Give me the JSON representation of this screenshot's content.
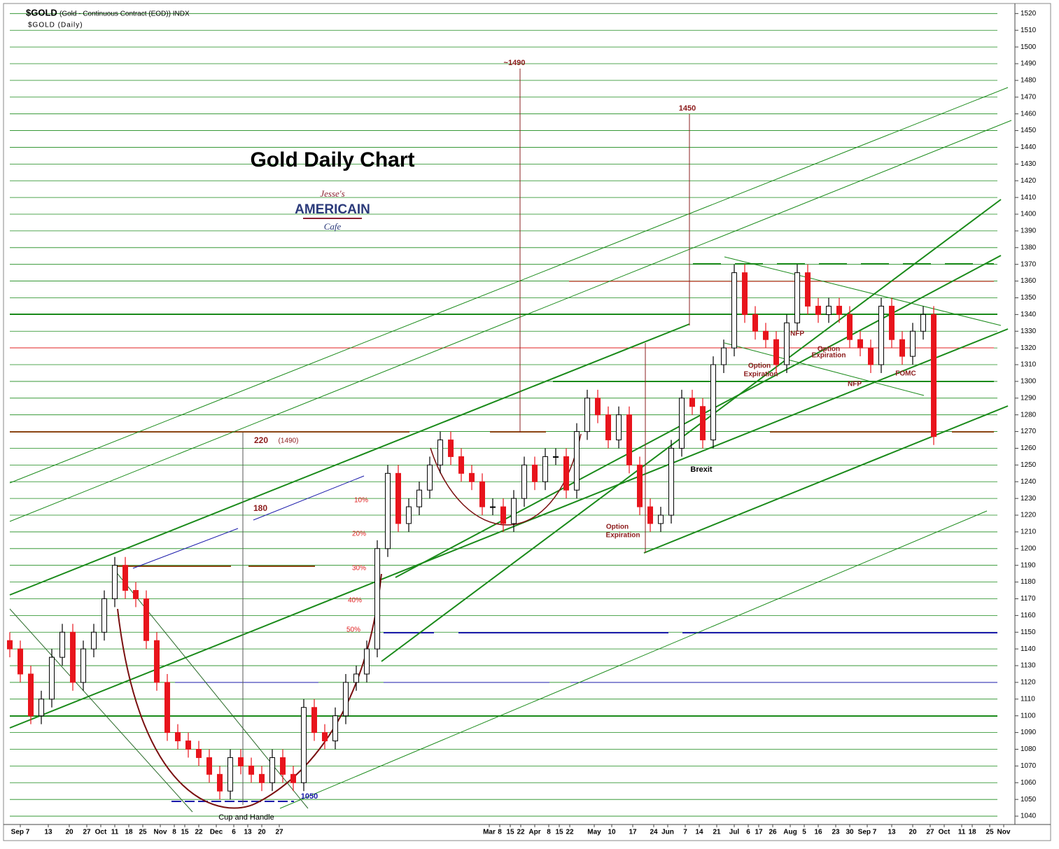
{
  "header": {
    "symbol": "$GOLD",
    "description": "(Gold - Continuous Contract (EOD)) INDX",
    "subtitle": "$GOLD (Daily)"
  },
  "logo": {
    "line1": "Jesse's",
    "line2": "AMERICAIN",
    "line3": "Cafe"
  },
  "chart_data": {
    "type": "candlestick",
    "title": "Gold Daily Chart",
    "up_color": "#000000",
    "down_color": "#e8141c",
    "grid_color": "#1a8a1a",
    "grid": true,
    "xlim": [
      0,
      287
    ],
    "ylim": [
      1035,
      1526
    ],
    "yticks": [
      1040,
      1050,
      1060,
      1070,
      1080,
      1090,
      1100,
      1110,
      1120,
      1130,
      1140,
      1150,
      1160,
      1170,
      1180,
      1190,
      1200,
      1210,
      1220,
      1230,
      1240,
      1250,
      1260,
      1270,
      1280,
      1290,
      1300,
      1310,
      1320,
      1330,
      1340,
      1350,
      1360,
      1370,
      1380,
      1390,
      1400,
      1410,
      1420,
      1430,
      1440,
      1450,
      1460,
      1470,
      1480,
      1490,
      1500,
      1510,
      1520
    ],
    "xticks": [
      {
        "value": 3,
        "label": "Sep 7"
      },
      {
        "value": 11,
        "label": "13"
      },
      {
        "value": 17,
        "label": "20"
      },
      {
        "value": 22,
        "label": "27"
      },
      {
        "value": 26,
        "label": "Oct"
      },
      {
        "value": 30,
        "label": "11"
      },
      {
        "value": 34,
        "label": "18"
      },
      {
        "value": 38,
        "label": "25"
      },
      {
        "value": 43,
        "label": "Nov"
      },
      {
        "value": 47,
        "label": "8"
      },
      {
        "value": 50,
        "label": "15"
      },
      {
        "value": 54,
        "label": "22"
      },
      {
        "value": 59,
        "label": "Dec"
      },
      {
        "value": 64,
        "label": "6"
      },
      {
        "value": 68,
        "label": "13"
      },
      {
        "value": 72,
        "label": "20"
      },
      {
        "value": 77,
        "label": "27"
      },
      {
        "value": 137,
        "label": "Mar"
      },
      {
        "value": 140,
        "label": "8"
      },
      {
        "value": 143,
        "label": "15"
      },
      {
        "value": 146,
        "label": "22"
      },
      {
        "value": 150,
        "label": "Apr"
      },
      {
        "value": 154,
        "label": "8"
      },
      {
        "value": 157,
        "label": "15"
      },
      {
        "value": 160,
        "label": "22"
      },
      {
        "value": 167,
        "label": "May"
      },
      {
        "value": 172,
        "label": "10"
      },
      {
        "value": 178,
        "label": "17"
      },
      {
        "value": 184,
        "label": "24"
      },
      {
        "value": 188,
        "label": "Jun"
      },
      {
        "value": 193,
        "label": "7"
      },
      {
        "value": 197,
        "label": "14"
      },
      {
        "value": 202,
        "label": "21"
      },
      {
        "value": 207,
        "label": "Jul"
      },
      {
        "value": 211,
        "label": "6"
      },
      {
        "value": 214,
        "label": "17"
      },
      {
        "value": 218,
        "label": "26"
      },
      {
        "value": 223,
        "label": "Aug"
      },
      {
        "value": 227,
        "label": "5"
      },
      {
        "value": 231,
        "label": "16"
      },
      {
        "value": 236,
        "label": "23"
      },
      {
        "value": 240,
        "label": "30"
      },
      {
        "value": 245,
        "label": "Sep 7"
      },
      {
        "value": 252,
        "label": "13"
      },
      {
        "value": 258,
        "label": "20"
      },
      {
        "value": 263,
        "label": "27"
      },
      {
        "value": 267,
        "label": "Oct"
      },
      {
        "value": 272,
        "label": "11"
      },
      {
        "value": 275,
        "label": "18"
      },
      {
        "value": 280,
        "label": "25"
      },
      {
        "value": 284,
        "label": "Nov"
      }
    ],
    "x": [
      0,
      3,
      6,
      9,
      12,
      15,
      18,
      21,
      24,
      27,
      30,
      33,
      36,
      39,
      42,
      45,
      48,
      51,
      54,
      57,
      60,
      63,
      66,
      69,
      72,
      75,
      78,
      81,
      84,
      87,
      90,
      93,
      96,
      99,
      102,
      105,
      108,
      111,
      114,
      117,
      120,
      123,
      126,
      129,
      132,
      135,
      138,
      141,
      144,
      147,
      150,
      153,
      156,
      159,
      162,
      165,
      168,
      171,
      174,
      177,
      180,
      183,
      186,
      189,
      192,
      195,
      198,
      201,
      204,
      207,
      210,
      213,
      216,
      219,
      222,
      225,
      228,
      231,
      234,
      237,
      240,
      243,
      246,
      249,
      252,
      255,
      258,
      261,
      264
    ],
    "open": [
      1145,
      1140,
      1125,
      1100,
      1110,
      1135,
      1150,
      1120,
      1140,
      1150,
      1170,
      1190,
      1175,
      1170,
      1145,
      1120,
      1090,
      1085,
      1080,
      1075,
      1065,
      1055,
      1075,
      1070,
      1065,
      1060,
      1075,
      1065,
      1060,
      1105,
      1090,
      1085,
      1100,
      1120,
      1125,
      1140,
      1200,
      1245,
      1215,
      1225,
      1235,
      1250,
      1265,
      1255,
      1245,
      1240,
      1225,
      1225,
      1215,
      1230,
      1250,
      1240,
      1255,
      1255,
      1235,
      1270,
      1290,
      1280,
      1265,
      1280,
      1250,
      1225,
      1215,
      1220,
      1260,
      1290,
      1285,
      1265,
      1310,
      1320,
      1365,
      1340,
      1330,
      1325,
      1310,
      1335,
      1365,
      1345,
      1340,
      1345,
      1340,
      1325,
      1320,
      1310,
      1345,
      1325,
      1315,
      1330,
      1340
    ],
    "high": [
      1150,
      1145,
      1130,
      1115,
      1140,
      1155,
      1155,
      1145,
      1155,
      1175,
      1195,
      1195,
      1180,
      1175,
      1150,
      1125,
      1095,
      1090,
      1085,
      1080,
      1070,
      1080,
      1080,
      1075,
      1070,
      1080,
      1080,
      1070,
      1110,
      1110,
      1095,
      1105,
      1125,
      1130,
      1145,
      1205,
      1250,
      1250,
      1230,
      1240,
      1255,
      1270,
      1270,
      1260,
      1250,
      1245,
      1230,
      1230,
      1235,
      1255,
      1255,
      1260,
      1260,
      1260,
      1275,
      1295,
      1295,
      1285,
      1285,
      1285,
      1255,
      1230,
      1225,
      1265,
      1295,
      1295,
      1290,
      1315,
      1325,
      1370,
      1370,
      1345,
      1335,
      1330,
      1340,
      1370,
      1370,
      1350,
      1350,
      1350,
      1345,
      1330,
      1325,
      1350,
      1350,
      1330,
      1335,
      1345,
      1345
    ],
    "low": [
      1135,
      1120,
      1095,
      1095,
      1105,
      1130,
      1115,
      1115,
      1135,
      1145,
      1165,
      1170,
      1165,
      1140,
      1115,
      1085,
      1080,
      1075,
      1070,
      1060,
      1050,
      1050,
      1065,
      1060,
      1055,
      1055,
      1060,
      1055,
      1055,
      1085,
      1080,
      1080,
      1095,
      1115,
      1120,
      1135,
      1195,
      1210,
      1210,
      1220,
      1230,
      1245,
      1250,
      1240,
      1235,
      1220,
      1220,
      1210,
      1210,
      1225,
      1235,
      1235,
      1250,
      1230,
      1230,
      1265,
      1275,
      1260,
      1260,
      1245,
      1220,
      1210,
      1210,
      1215,
      1255,
      1280,
      1260,
      1260,
      1305,
      1315,
      1335,
      1325,
      1320,
      1305,
      1305,
      1330,
      1340,
      1335,
      1335,
      1335,
      1320,
      1315,
      1305,
      1305,
      1320,
      1310,
      1310,
      1325,
      1262
    ],
    "close": [
      1140,
      1125,
      1100,
      1110,
      1135,
      1150,
      1120,
      1140,
      1150,
      1170,
      1190,
      1175,
      1170,
      1145,
      1120,
      1090,
      1085,
      1080,
      1075,
      1065,
      1055,
      1075,
      1070,
      1065,
      1060,
      1075,
      1065,
      1060,
      1105,
      1090,
      1085,
      1100,
      1120,
      1125,
      1140,
      1200,
      1245,
      1215,
      1225,
      1235,
      1250,
      1265,
      1255,
      1245,
      1240,
      1225,
      1225,
      1215,
      1230,
      1250,
      1240,
      1255,
      1255,
      1235,
      1270,
      1290,
      1280,
      1265,
      1280,
      1250,
      1225,
      1215,
      1220,
      1260,
      1290,
      1285,
      1265,
      1310,
      1320,
      1365,
      1340,
      1330,
      1325,
      1310,
      1335,
      1365,
      1345,
      1340,
      1345,
      1340,
      1325,
      1320,
      1310,
      1345,
      1325,
      1315,
      1330,
      1340,
      1267
    ],
    "annotations": [
      "~1490",
      "1450",
      "220",
      "(1490)",
      "180",
      "10%",
      "20%",
      "30%",
      "40%",
      "50%",
      "Option",
      "Expiration",
      "Brexit",
      "Option",
      "Expiration",
      "NFP",
      "Option",
      "Expiration",
      "NFP",
      "FOMC",
      "1050",
      "Cup and Handle"
    ]
  }
}
